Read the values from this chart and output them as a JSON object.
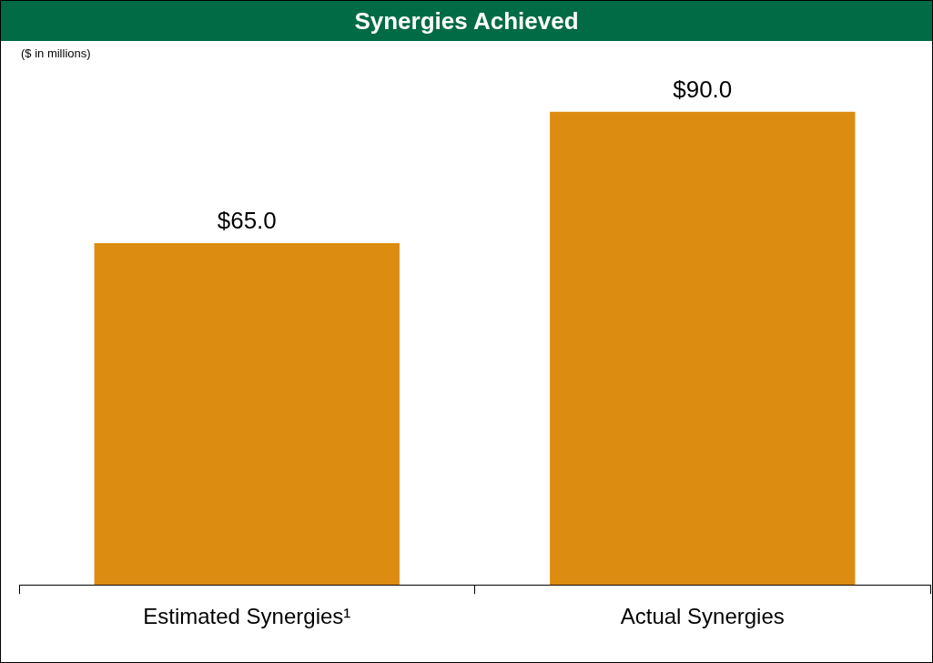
{
  "chart_data": {
    "type": "bar",
    "title": "Synergies Achieved",
    "subtitle": "($ in millions)",
    "categories": [
      "Estimated Synergies¹",
      "Actual Synergies"
    ],
    "values": [
      65,
      90
    ],
    "value_labels": [
      "$65.0",
      "$90.0"
    ],
    "color": "#dc8c10",
    "grid": false,
    "legend": false,
    "tick_labels": "x"
  }
}
